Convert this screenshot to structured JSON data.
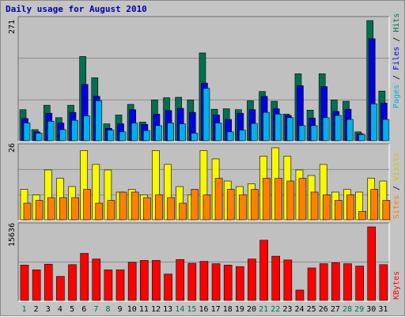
{
  "title": "Daily usage for August 2010",
  "colors": {
    "hits": "#007050",
    "files": "#0000e0",
    "pages": "#00b0e8",
    "visits": "#f8f800",
    "sites": "#ff8000",
    "kbytes": "#ff0000",
    "day_normal": "#000000",
    "day_weekend": "#007050"
  },
  "chart_data": [
    {
      "type": "bar",
      "categories": [
        "1",
        "2",
        "3",
        "4",
        "5",
        "6",
        "7",
        "8",
        "9",
        "10",
        "11",
        "12",
        "13",
        "14",
        "15",
        "16",
        "17",
        "18",
        "19",
        "20",
        "21",
        "22",
        "23",
        "24",
        "25",
        "26",
        "27",
        "28",
        "29",
        "30",
        "31"
      ],
      "weekend_days": [
        "1",
        "7",
        "8",
        "14",
        "15",
        "21",
        "22",
        "28",
        "29"
      ],
      "max_label": "271",
      "ylim": [
        0,
        271
      ],
      "series": [
        {
          "name": "Hits",
          "values": [
            70,
            25,
            80,
            52,
            80,
            190,
            142,
            38,
            58,
            82,
            42,
            92,
            97,
            98,
            92,
            198,
            71,
            72,
            70,
            90,
            111,
            89,
            60,
            151,
            69,
            151,
            92,
            89,
            20,
            271,
            112
          ]
        },
        {
          "name": "Files",
          "values": [
            50,
            20,
            62,
            40,
            64,
            127,
            100,
            28,
            38,
            70,
            37,
            60,
            68,
            73,
            64,
            130,
            58,
            48,
            62,
            70,
            100,
            72,
            57,
            124,
            51,
            122,
            66,
            71,
            16,
            230,
            85
          ]
        },
        {
          "name": "Pages",
          "values": [
            40,
            17,
            44,
            25,
            46,
            56,
            90,
            24,
            20,
            40,
            23,
            34,
            40,
            38,
            17,
            118,
            40,
            20,
            24,
            39,
            64,
            60,
            52,
            34,
            34,
            52,
            57,
            48,
            14,
            83,
            48
          ]
        }
      ],
      "legend": [
        "Pages",
        "Files",
        "Hits"
      ]
    },
    {
      "type": "bar",
      "categories": [
        "1",
        "2",
        "3",
        "4",
        "5",
        "6",
        "7",
        "8",
        "9",
        "10",
        "11",
        "12",
        "13",
        "14",
        "15",
        "16",
        "17",
        "18",
        "19",
        "20",
        "21",
        "22",
        "23",
        "24",
        "25",
        "26",
        "27",
        "28",
        "29",
        "30",
        "31"
      ],
      "max_label": "26",
      "ylim": [
        0,
        26
      ],
      "series": [
        {
          "name": "Visits",
          "values": [
            11,
            9,
            18,
            15,
            12,
            25,
            20,
            18,
            10,
            11,
            9,
            25,
            20,
            12,
            9,
            25,
            22,
            14,
            12,
            13,
            23,
            26,
            23,
            18,
            16,
            20,
            10,
            11,
            10,
            15,
            14
          ]
        },
        {
          "name": "Sites",
          "values": [
            6,
            7,
            8,
            8,
            8,
            11,
            6,
            7,
            10,
            10,
            8,
            9,
            8,
            6,
            11,
            9,
            15,
            11,
            9,
            11,
            15,
            15,
            14,
            15,
            10,
            9,
            7,
            9,
            3,
            11,
            7
          ]
        }
      ],
      "legend": [
        "Sites",
        "Visits"
      ]
    },
    {
      "type": "bar",
      "categories": [
        "1",
        "2",
        "3",
        "4",
        "5",
        "6",
        "7",
        "8",
        "9",
        "10",
        "11",
        "12",
        "13",
        "14",
        "15",
        "16",
        "17",
        "18",
        "19",
        "20",
        "21",
        "22",
        "23",
        "24",
        "25",
        "26",
        "27",
        "28",
        "29",
        "30",
        "31"
      ],
      "max_label": "15636",
      "ylim": [
        0,
        15636
      ],
      "series": [
        {
          "name": "KBytes",
          "values": [
            7500,
            6500,
            7700,
            5100,
            7600,
            10000,
            8800,
            6500,
            6500,
            8100,
            8500,
            8500,
            5600,
            8700,
            7900,
            8300,
            7800,
            7500,
            7200,
            8800,
            12800,
            9400,
            8600,
            2200,
            6900,
            7800,
            8000,
            7800,
            7300,
            15636,
            7600
          ]
        }
      ],
      "legend": [
        "KBytes"
      ]
    }
  ]
}
